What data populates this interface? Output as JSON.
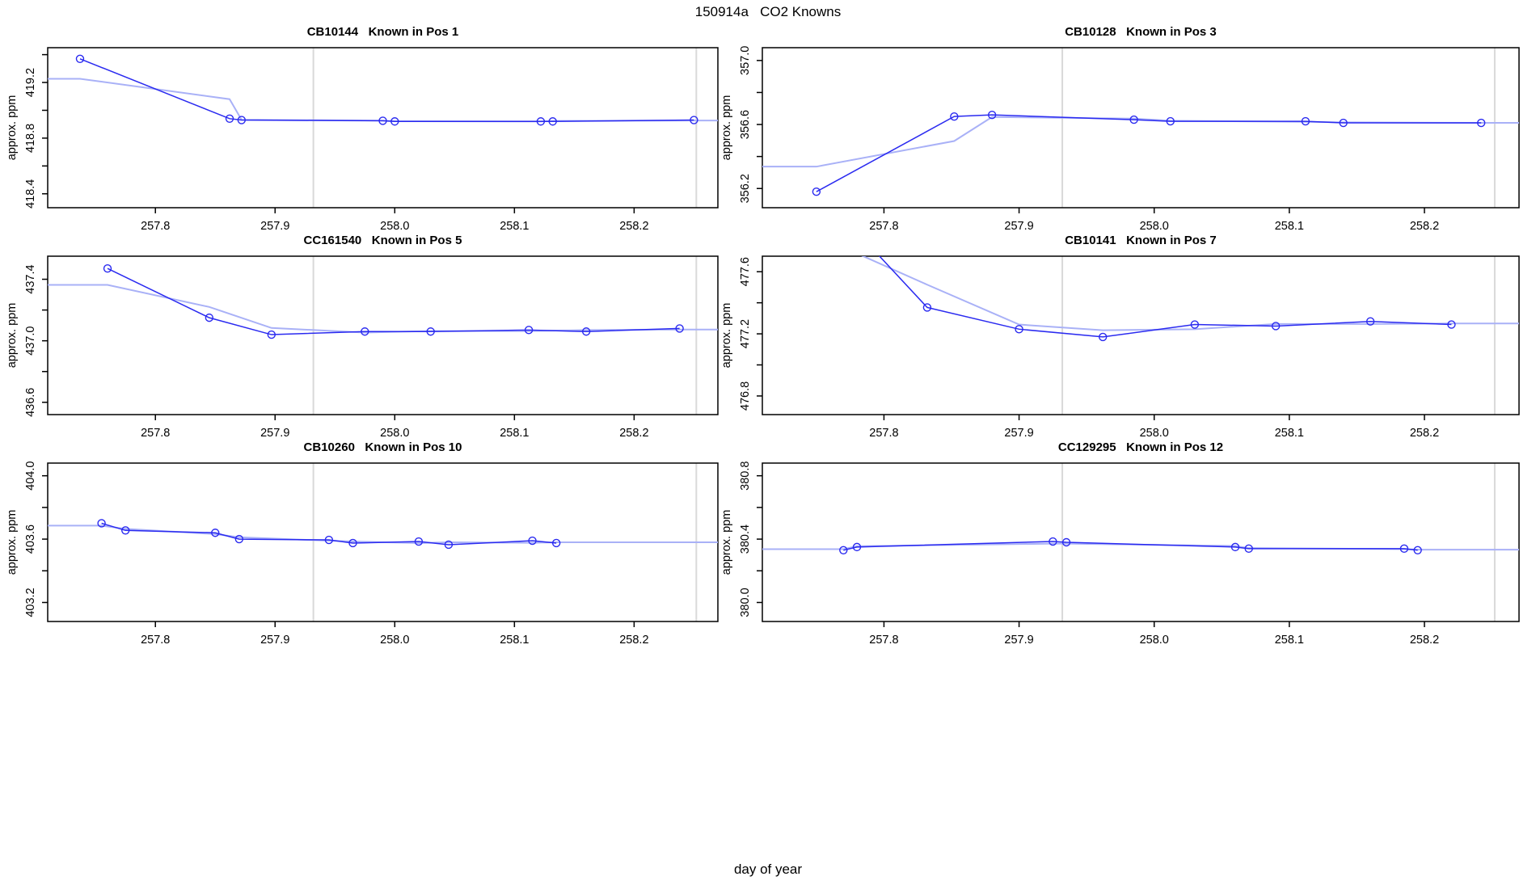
{
  "title": "150914a   CO2 Knowns",
  "x_axis_label": "day of year",
  "colors": {
    "series_line": "#2a2af0",
    "smooth_line": "#a9b1f7",
    "marker": "#2a2af0",
    "reference_line": "#d9d9d9",
    "frame": "#000000",
    "text": "#000000"
  },
  "x_axis": {
    "range": [
      257.71,
      258.27
    ],
    "tick_values": [
      257.8,
      257.9,
      258.0,
      258.1,
      258.2
    ],
    "tick_labels": [
      "257.8",
      "257.9",
      "258.0",
      "258.1",
      "258.2"
    ],
    "reference_lines": [
      257.932,
      258.252
    ]
  },
  "chart_data": [
    {
      "type": "line",
      "title": "CB10144   Known in Pos 1",
      "tank_id": "CB10144",
      "position": "Pos 1",
      "ylabel": "approx. ppm",
      "y_range": [
        418.3,
        419.45
      ],
      "y_tick_step": 0.2,
      "y_tick_labels": [
        "418.4",
        "418.8",
        "419.2"
      ],
      "points": [
        [
          257.737,
          419.37
        ],
        [
          257.862,
          418.94
        ],
        [
          257.872,
          418.93
        ],
        [
          257.99,
          418.925
        ],
        [
          258.0,
          418.92
        ],
        [
          258.122,
          418.92
        ],
        [
          258.132,
          418.92
        ],
        [
          258.25,
          418.93
        ]
      ]
    },
    {
      "type": "line",
      "title": "CB10128   Known in Pos 3",
      "tank_id": "CB10128",
      "position": "Pos 3",
      "ylabel": "approx. ppm",
      "y_range": [
        356.08,
        357.08
      ],
      "y_tick_step": 0.2,
      "y_tick_labels": [
        "356.2",
        "356.6",
        "357.0"
      ],
      "points": [
        [
          257.75,
          356.18
        ],
        [
          257.852,
          356.65
        ],
        [
          257.88,
          356.66
        ],
        [
          257.985,
          356.63
        ],
        [
          258.012,
          356.62
        ],
        [
          258.112,
          356.62
        ],
        [
          258.14,
          356.61
        ],
        [
          258.242,
          356.61
        ]
      ]
    },
    {
      "type": "line",
      "title": "CC161540   Known in Pos 5",
      "tank_id": "CC161540",
      "position": "Pos 5",
      "ylabel": "approx. ppm",
      "y_range": [
        436.52,
        437.55
      ],
      "y_tick_step": 0.2,
      "y_tick_labels": [
        "436.6",
        "437.0",
        "437.4"
      ],
      "points": [
        [
          257.76,
          437.47
        ],
        [
          257.845,
          437.15
        ],
        [
          257.897,
          437.04
        ],
        [
          257.975,
          437.06
        ],
        [
          258.03,
          437.06
        ],
        [
          258.112,
          437.07
        ],
        [
          258.16,
          437.06
        ],
        [
          258.238,
          437.08
        ]
      ]
    },
    {
      "type": "line",
      "title": "CB10141   Known in Pos 7",
      "tank_id": "CB10141",
      "position": "Pos 7",
      "ylabel": "approx. ppm",
      "y_range": [
        476.68,
        477.7
      ],
      "y_tick_step": 0.2,
      "y_tick_labels": [
        "476.8",
        "477.2",
        "477.6"
      ],
      "points": [
        [
          257.77,
          477.95
        ],
        [
          257.832,
          477.37
        ],
        [
          257.9,
          477.23
        ],
        [
          257.962,
          477.18
        ],
        [
          258.03,
          477.26
        ],
        [
          258.09,
          477.25
        ],
        [
          258.16,
          477.28
        ],
        [
          258.22,
          477.26
        ]
      ]
    },
    {
      "type": "line",
      "title": "CB10260   Known in Pos 10",
      "tank_id": "CB10260",
      "position": "Pos 10",
      "ylabel": "approx. ppm",
      "y_range": [
        403.08,
        404.08
      ],
      "y_tick_step": 0.2,
      "y_tick_labels": [
        "403.2",
        "403.6",
        "404.0"
      ],
      "points": [
        [
          257.755,
          403.7
        ],
        [
          257.775,
          403.655
        ],
        [
          257.85,
          403.64
        ],
        [
          257.87,
          403.6
        ],
        [
          257.945,
          403.595
        ],
        [
          257.965,
          403.575
        ],
        [
          258.02,
          403.585
        ],
        [
          258.045,
          403.565
        ],
        [
          258.115,
          403.59
        ],
        [
          258.135,
          403.575
        ]
      ]
    },
    {
      "type": "line",
      "title": "CC129295   Known in Pos 12",
      "tank_id": "CC129295",
      "position": "Pos 12",
      "ylabel": "approx. ppm",
      "y_range": [
        379.88,
        380.88
      ],
      "y_tick_step": 0.2,
      "y_tick_labels": [
        "380.0",
        "380.4",
        "380.8"
      ],
      "points": [
        [
          257.77,
          380.33
        ],
        [
          257.78,
          380.35
        ],
        [
          257.925,
          380.385
        ],
        [
          257.935,
          380.38
        ],
        [
          258.06,
          380.35
        ],
        [
          258.07,
          380.34
        ],
        [
          258.185,
          380.34
        ],
        [
          258.195,
          380.33
        ]
      ]
    }
  ],
  "layout_hints": {
    "rows": 3,
    "cols": 2,
    "grid": "off",
    "legend": "none",
    "marker_style": "open-circle",
    "smooth_overlay": true
  }
}
